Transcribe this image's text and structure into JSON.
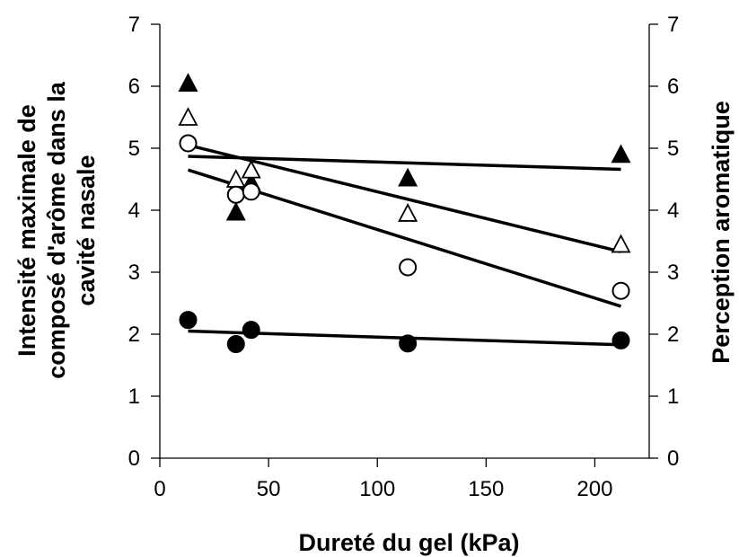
{
  "chart_data": {
    "type": "scatter",
    "xlabel": "Dureté du gel (kPa)",
    "ylabel_left": [
      "Intensité maximale de",
      "composé d'arôme dans la",
      "cavité nasale"
    ],
    "ylabel_right": "Perception aromatique",
    "xlim": [
      0,
      225
    ],
    "ylim_left": [
      0,
      7
    ],
    "ylim_right": [
      0,
      7
    ],
    "xticks": [
      0,
      50,
      100,
      150,
      200
    ],
    "yticks_left": [
      0,
      1,
      2,
      3,
      4,
      5,
      6,
      7
    ],
    "yticks_right": [
      0,
      1,
      2,
      3,
      4,
      5,
      6,
      7
    ],
    "grid": false,
    "series": [
      {
        "marker": "filled-triangle",
        "points": [
          [
            13,
            6.05
          ],
          [
            35,
            3.97
          ],
          [
            42,
            4.45
          ],
          [
            114,
            4.52
          ],
          [
            212,
            4.9
          ]
        ],
        "trend": [
          [
            13,
            4.87
          ],
          [
            212,
            4.66
          ]
        ]
      },
      {
        "marker": "open-triangle",
        "points": [
          [
            13,
            5.5
          ],
          [
            35,
            4.5
          ],
          [
            42,
            4.65
          ],
          [
            114,
            3.95
          ],
          [
            212,
            3.45
          ]
        ],
        "trend": [
          [
            13,
            5.05
          ],
          [
            212,
            3.33
          ]
        ]
      },
      {
        "marker": "open-circle",
        "points": [
          [
            13,
            5.08
          ],
          [
            35,
            4.25
          ],
          [
            42,
            4.3
          ],
          [
            114,
            3.08
          ],
          [
            212,
            2.7
          ]
        ],
        "trend": [
          [
            13,
            4.65
          ],
          [
            212,
            2.45
          ]
        ]
      },
      {
        "marker": "filled-circle",
        "points": [
          [
            13,
            2.23
          ],
          [
            35,
            1.84
          ],
          [
            42,
            2.07
          ],
          [
            114,
            1.85
          ],
          [
            212,
            1.9
          ]
        ],
        "trend": [
          [
            13,
            2.05
          ],
          [
            212,
            1.83
          ]
        ]
      }
    ]
  }
}
